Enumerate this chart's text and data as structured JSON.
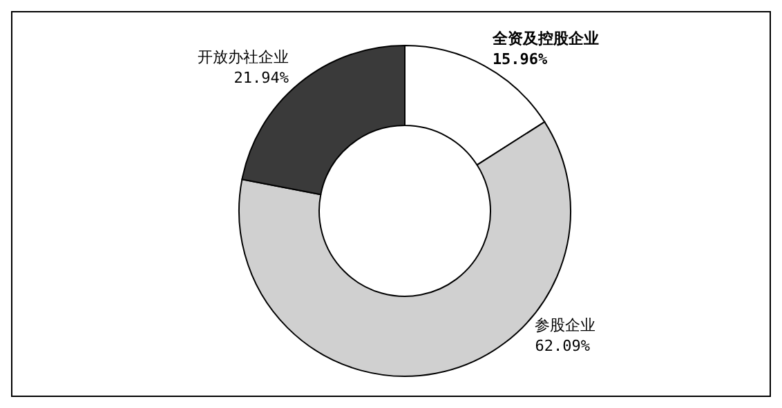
{
  "chart_data": {
    "type": "donut",
    "categories": [
      "全资及控股企业",
      "参股企业",
      "开放办社企业"
    ],
    "values": [
      15.96,
      62.09,
      21.94
    ],
    "value_labels": [
      "15.96%",
      "62.09%",
      "21.94%"
    ],
    "colors": [
      "#ffffff",
      "#d0d0d0",
      "#3a3a3a"
    ]
  }
}
